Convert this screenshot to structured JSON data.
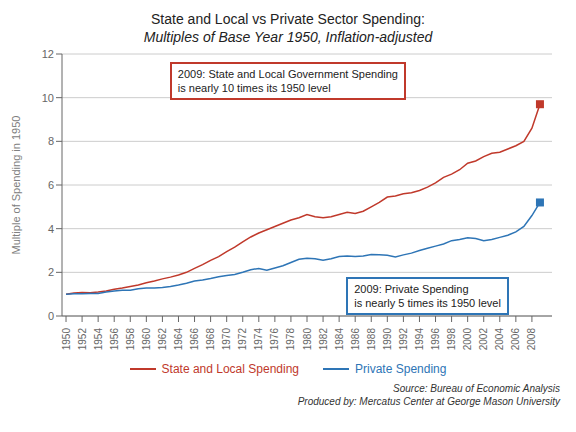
{
  "chart_data": {
    "type": "line",
    "title": "State and Local vs Private Sector Spending:",
    "subtitle": "Multiples of Base Year 1950, Inflation-adjusted",
    "y_label": "Multiple of Spending in 1950",
    "x": [
      1950,
      1951,
      1952,
      1953,
      1954,
      1955,
      1956,
      1957,
      1958,
      1959,
      1960,
      1961,
      1962,
      1963,
      1964,
      1965,
      1966,
      1967,
      1968,
      1969,
      1970,
      1971,
      1972,
      1973,
      1974,
      1975,
      1976,
      1977,
      1978,
      1979,
      1980,
      1981,
      1982,
      1983,
      1984,
      1985,
      1986,
      1987,
      1988,
      1989,
      1990,
      1991,
      1992,
      1993,
      1994,
      1995,
      1996,
      1997,
      1998,
      1999,
      2000,
      2001,
      2002,
      2003,
      2004,
      2005,
      2006,
      2007,
      2008,
      2009
    ],
    "series": [
      {
        "name": "State and Local Spending",
        "color": "#C0392B",
        "marker": "square",
        "values": [
          1.0,
          1.05,
          1.08,
          1.07,
          1.1,
          1.15,
          1.22,
          1.28,
          1.35,
          1.42,
          1.52,
          1.6,
          1.7,
          1.78,
          1.88,
          2.0,
          2.18,
          2.35,
          2.55,
          2.72,
          2.95,
          3.15,
          3.4,
          3.62,
          3.8,
          3.95,
          4.1,
          4.25,
          4.4,
          4.5,
          4.65,
          4.55,
          4.5,
          4.55,
          4.65,
          4.75,
          4.7,
          4.8,
          5.0,
          5.2,
          5.45,
          5.5,
          5.6,
          5.65,
          5.75,
          5.9,
          6.1,
          6.35,
          6.5,
          6.7,
          7.0,
          7.1,
          7.3,
          7.45,
          7.5,
          7.65,
          7.8,
          8.0,
          8.6,
          9.7
        ]
      },
      {
        "name": "Private Spending",
        "color": "#2E75B6",
        "marker": "square",
        "values": [
          1.0,
          1.02,
          1.02,
          1.03,
          1.03,
          1.1,
          1.15,
          1.18,
          1.18,
          1.25,
          1.28,
          1.28,
          1.3,
          1.35,
          1.42,
          1.5,
          1.6,
          1.65,
          1.72,
          1.8,
          1.85,
          1.9,
          2.0,
          2.12,
          2.18,
          2.1,
          2.2,
          2.3,
          2.45,
          2.6,
          2.65,
          2.62,
          2.55,
          2.62,
          2.72,
          2.75,
          2.72,
          2.75,
          2.82,
          2.8,
          2.78,
          2.7,
          2.8,
          2.88,
          3.0,
          3.1,
          3.2,
          3.3,
          3.45,
          3.5,
          3.58,
          3.55,
          3.45,
          3.5,
          3.6,
          3.7,
          3.85,
          4.1,
          4.6,
          5.2
        ]
      }
    ],
    "xlim": [
      1949.5,
      2010.5
    ],
    "xticks": [
      1950,
      1952,
      1954,
      1956,
      1958,
      1960,
      1962,
      1964,
      1966,
      1968,
      1970,
      1972,
      1974,
      1976,
      1978,
      1980,
      1982,
      1984,
      1986,
      1988,
      1990,
      1992,
      1994,
      1996,
      1998,
      2000,
      2002,
      2004,
      2006,
      2008
    ],
    "ylim": [
      0,
      12
    ],
    "yticks": [
      0,
      2,
      4,
      6,
      8,
      10,
      12
    ],
    "grid": true,
    "legend": "bottom",
    "annotations": [
      {
        "text": "2009: State and Local Government Spending\nis nearly 10 times its 1950 level",
        "color": "#C0392B"
      },
      {
        "text": "2009: Private Spending\nis nearly 5 times its 1950 level",
        "color": "#2E75B6"
      },
      {
        "text": "Source: Bureau of Economic Analysis"
      },
      {
        "text": "Produced by: Mercatus Center at George Mason University"
      }
    ]
  }
}
